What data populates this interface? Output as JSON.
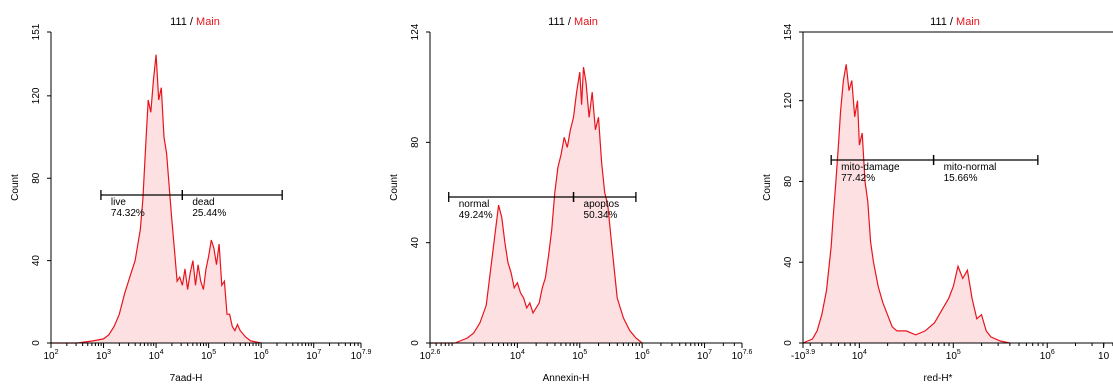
{
  "colors": {
    "series": "#e8141c",
    "fill": "#fde0e2",
    "axis": "#000000",
    "title_main": "#e8141c",
    "gate": "#000000"
  },
  "chart_data": [
    {
      "type": "area",
      "title_sample": "111",
      "title_sep": " / ",
      "title_gate": "Main",
      "xlabel": "7aad-H",
      "ylabel": "Count",
      "xscale": "log",
      "xlim_log10": [
        2,
        7.9
      ],
      "ylim": [
        0,
        151
      ],
      "ytick_values": [
        0,
        40,
        80,
        120,
        151
      ],
      "ytick_labels": [
        "0",
        "40",
        "80",
        "120",
        "151"
      ],
      "xticks": [
        {
          "log": 2,
          "base": "10",
          "exp": "2"
        },
        {
          "log": 3,
          "base": "10",
          "exp": "3"
        },
        {
          "log": 4,
          "base": "10",
          "exp": "4"
        },
        {
          "log": 5,
          "base": "10",
          "exp": "5"
        },
        {
          "log": 6,
          "base": "10",
          "exp": "6"
        },
        {
          "log": 7,
          "base": "10",
          "exp": "7"
        },
        {
          "log": 7.9,
          "base": "10",
          "exp": "7.9"
        }
      ],
      "histogram": {
        "x_log10": [
          2.0,
          2.5,
          2.8,
          3.0,
          3.1,
          3.2,
          3.3,
          3.4,
          3.5,
          3.6,
          3.7,
          3.75,
          3.8,
          3.85,
          3.9,
          3.95,
          4.0,
          4.05,
          4.1,
          4.15,
          4.2,
          4.25,
          4.3,
          4.35,
          4.4,
          4.45,
          4.5,
          4.55,
          4.6,
          4.65,
          4.7,
          4.75,
          4.8,
          4.85,
          4.9,
          4.95,
          5.0,
          5.05,
          5.1,
          5.15,
          5.2,
          5.25,
          5.3,
          5.35,
          5.4,
          5.45,
          5.5,
          5.55,
          5.6,
          5.7,
          5.8,
          6.0
        ],
        "counts": [
          0,
          0,
          1,
          2,
          4,
          8,
          14,
          24,
          32,
          40,
          55,
          70,
          95,
          118,
          112,
          128,
          140,
          118,
          124,
          100,
          92,
          76,
          60,
          45,
          30,
          32,
          28,
          36,
          26,
          34,
          40,
          28,
          38,
          30,
          26,
          36,
          42,
          50,
          46,
          38,
          48,
          28,
          30,
          14,
          14,
          8,
          6,
          9,
          6,
          3,
          1,
          0
        ]
      },
      "gates": [
        {
          "name": "live",
          "pct": "74.32%",
          "start_log10": 2.95,
          "end_log10": 4.5
        },
        {
          "name": "dead",
          "pct": "25.44%",
          "start_log10": 4.5,
          "end_log10": 6.4
        }
      ]
    },
    {
      "type": "area",
      "title_sample": "111",
      "title_sep": " / ",
      "title_gate": "Main",
      "xlabel": "Annexin-H",
      "ylabel": "Count",
      "xscale": "log",
      "xlim_log10": [
        2.6,
        7.6
      ],
      "ylim": [
        0,
        124
      ],
      "ytick_values": [
        0,
        40,
        80,
        124
      ],
      "ytick_labels": [
        "0",
        "40",
        "80",
        "124"
      ],
      "xticks": [
        {
          "log": 2.6,
          "base": "10",
          "exp": "2.6"
        },
        {
          "log": 4,
          "base": "10",
          "exp": "4"
        },
        {
          "log": 5,
          "base": "10",
          "exp": "5"
        },
        {
          "log": 6,
          "base": "10",
          "exp": "6"
        },
        {
          "log": 7,
          "base": "10",
          "exp": "7"
        },
        {
          "log": 7.6,
          "base": "10",
          "exp": "7.6"
        }
      ],
      "histogram": {
        "x_log10": [
          2.6,
          3.0,
          3.1,
          3.2,
          3.3,
          3.4,
          3.5,
          3.55,
          3.6,
          3.65,
          3.7,
          3.75,
          3.8,
          3.85,
          3.9,
          3.95,
          4.0,
          4.05,
          4.1,
          4.15,
          4.2,
          4.25,
          4.3,
          4.35,
          4.4,
          4.45,
          4.5,
          4.55,
          4.6,
          4.65,
          4.7,
          4.75,
          4.8,
          4.85,
          4.9,
          4.95,
          5.0,
          5.03,
          5.06,
          5.1,
          5.15,
          5.2,
          5.25,
          5.3,
          5.35,
          5.4,
          5.45,
          5.5,
          5.55,
          5.6,
          5.65,
          5.7,
          5.8,
          5.9,
          6.0
        ],
        "counts": [
          0,
          0,
          1,
          2,
          4,
          8,
          15,
          25,
          35,
          45,
          55,
          50,
          40,
          32,
          28,
          22,
          24,
          20,
          18,
          14,
          16,
          12,
          14,
          16,
          22,
          26,
          35,
          45,
          60,
          70,
          75,
          82,
          78,
          85,
          90,
          100,
          108,
          95,
          110,
          104,
          90,
          100,
          85,
          90,
          72,
          60,
          55,
          42,
          30,
          18,
          14,
          10,
          5,
          2,
          0
        ]
      },
      "gates": [
        {
          "name": "normal",
          "pct": "49.24%",
          "start_log10": 2.9,
          "end_log10": 4.9
        },
        {
          "name": "apoptos",
          "pct": "50.34%",
          "start_log10": 4.9,
          "end_log10": 5.9
        }
      ]
    },
    {
      "type": "area",
      "title_sample": "111",
      "title_sep": " / ",
      "title_gate": "Main",
      "xlabel": "red-H*",
      "ylabel": "Count",
      "xscale": "log",
      "xlim_log10": [
        3.4,
        6.7
      ],
      "ylim": [
        0,
        154
      ],
      "ytick_values": [
        0,
        40,
        80,
        120,
        154
      ],
      "ytick_labels": [
        "0",
        "40",
        "80",
        "120",
        "154"
      ],
      "xticks": [
        {
          "log": 3.4,
          "base": "-10",
          "exp": "3.9"
        },
        {
          "log": 4,
          "base": "10",
          "exp": "4"
        },
        {
          "log": 5,
          "base": "10",
          "exp": "5"
        },
        {
          "log": 6,
          "base": "10",
          "exp": "6"
        },
        {
          "log": 6.6,
          "base": "10",
          "exp": ""
        }
      ],
      "histogram": {
        "x_log10": [
          3.4,
          3.5,
          3.55,
          3.6,
          3.65,
          3.7,
          3.72,
          3.75,
          3.78,
          3.8,
          3.83,
          3.86,
          3.89,
          3.92,
          3.95,
          3.98,
          4.0,
          4.03,
          4.06,
          4.09,
          4.12,
          4.15,
          4.2,
          4.25,
          4.3,
          4.35,
          4.4,
          4.5,
          4.6,
          4.7,
          4.8,
          4.85,
          4.9,
          4.95,
          5.0,
          5.05,
          5.1,
          5.15,
          5.2,
          5.25,
          5.3,
          5.35,
          5.4,
          5.5,
          5.6
        ],
        "counts": [
          0,
          2,
          6,
          14,
          26,
          48,
          62,
          80,
          100,
          115,
          130,
          138,
          125,
          130,
          112,
          120,
          98,
          104,
          80,
          70,
          50,
          40,
          28,
          20,
          14,
          8,
          6,
          6,
          4,
          6,
          10,
          14,
          18,
          22,
          28,
          38,
          32,
          36,
          22,
          12,
          14,
          6,
          3,
          1,
          0
        ]
      },
      "gates": [
        {
          "name": "mito-damage",
          "pct": "77.42%",
          "start_log10": 3.7,
          "end_log10": 4.79
        },
        {
          "name": "mito-normal",
          "pct": "15.66%",
          "start_log10": 4.79,
          "end_log10": 5.9
        }
      ]
    }
  ]
}
